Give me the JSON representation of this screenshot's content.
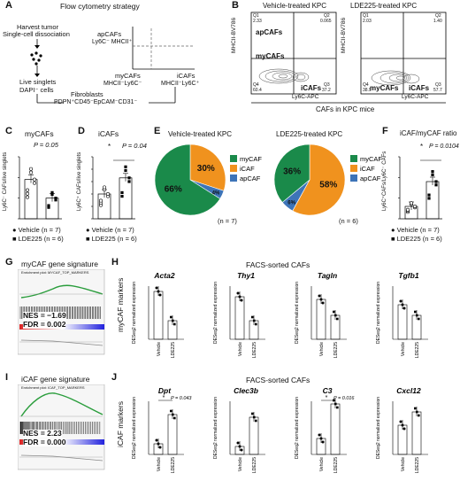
{
  "panels": {
    "A": {
      "letter": "A",
      "title": "Flow cytometry strategy",
      "harvest": "Harvest tumor",
      "dissociation": "Single-cell dissociation",
      "live_singlets": "Live singlets",
      "dapi": "DAPI⁻ cells",
      "fibroblasts": "Fibroblasts",
      "fibro_markers": "PDPN⁺CD45⁻EpCAM⁻CD31⁻",
      "apcafs": "apCAFs",
      "apcafs_markers": "Ly6C⁻ MHCII⁺",
      "mycafs": "myCAFs",
      "mycafs_markers": "MHCII⁻Ly6C⁻",
      "icafs": "iCAFs",
      "icafs_markers": "MHCII⁻Ly6C⁺"
    },
    "B": {
      "letter": "B",
      "left_title": "Vehicle-treated KPC",
      "right_title": "LDE225-treated KPC",
      "ylabel": "MHCII-BV786",
      "xlabel": "Ly6C-APC",
      "bottom": "CAFs in KPC mice",
      "left": {
        "q1": "Q1",
        "q1v": "2.33",
        "q2": "Q2",
        "q2v": "0.065",
        "q3": "Q3",
        "q3v": "37.2",
        "q4": "Q4",
        "q4v": "60.4"
      },
      "right": {
        "q1": "Q1",
        "q1v": "2.03",
        "q2": "Q2",
        "q2v": "1.40",
        "q3": "Q3",
        "q3v": "57.7",
        "q4": "Q4",
        "q4v": "38.9"
      },
      "apcafs": "apCAFs",
      "mycafs": "myCAFs",
      "icafs": "iCAFs"
    },
    "C": {
      "letter": "C",
      "title": "myCAFs",
      "pval": "P = 0.05",
      "ylabel": "Ly6C⁻ CAFs/live singlets"
    },
    "D": {
      "letter": "D",
      "title": "iCAFs",
      "pval": "P = 0.04",
      "star": "*",
      "ylabel": "Ly6C⁺ CAFs/live singlets"
    },
    "E": {
      "letter": "E",
      "left_title": "Vehicle-treated KPC",
      "right_title": "LDE225-treated KPC",
      "left_n": "(n = 7)",
      "right_n": "(n = 6)",
      "legend": [
        "myCAF",
        "iCAF",
        "apCAF"
      ]
    },
    "F": {
      "letter": "F",
      "title": "iCAF/myCAF ratio",
      "pval": "P = 0.0104",
      "star": "*",
      "ylabel": "Ly6C⁺CAFs/Ly6C⁻ CAFs"
    },
    "legend_groups": {
      "vehicle": "Vehicle (n = 7)",
      "lde": "LDE225 (n = 6)"
    },
    "G": {
      "letter": "G",
      "title": "myCAF gene signature",
      "plot_title": "Enrichment plot: MYCAF_TOP_MARKERS",
      "nes": "NES = −1.69",
      "fdr": "FDR = 0.002"
    },
    "H": {
      "letter": "H",
      "title": "FACS-sorted CAFs",
      "side": "myCAF markers",
      "ylabel": "DESeq2 normalized expression",
      "genes": [
        "Acta2",
        "Thy1",
        "Tagln",
        "Tgfb1"
      ],
      "xcats": [
        "Vehicle",
        "LDE225"
      ]
    },
    "I": {
      "letter": "I",
      "title": "iCAF gene signature",
      "plot_title": "Enrichment plot: ICAF_TOP_MARKERS",
      "nes": "NES = 2.23",
      "fdr": "FDR = 0.000"
    },
    "J": {
      "letter": "J",
      "title": "FACS-sorted CAFs",
      "side": "iCAF markers",
      "ylabel": "DESeq2 normalized expression",
      "genes": [
        "Dpt",
        "Clec3b",
        "C3",
        "Cxcl12"
      ],
      "xcats": [
        "Vehicle",
        "LDE225"
      ],
      "pvals": [
        "P = 0.043",
        "",
        "P = 0.016",
        ""
      ],
      "star": "*"
    }
  },
  "chart_data": [
    {
      "type": "pie",
      "title": "Vehicle-treated KPC",
      "categories": [
        "myCAF",
        "iCAF",
        "apCAF"
      ],
      "values": [
        66,
        30,
        4
      ],
      "colors": [
        "#1a8a4a",
        "#f0921e",
        "#3d74b8"
      ]
    },
    {
      "type": "pie",
      "title": "LDE225-treated KPC",
      "categories": [
        "myCAF",
        "iCAF",
        "apCAF"
      ],
      "values": [
        36,
        58,
        6
      ],
      "colors": [
        "#1a8a4a",
        "#f0921e",
        "#3d74b8"
      ]
    },
    {
      "type": "bar",
      "title": "myCAFs",
      "categories": [
        "Vehicle",
        "LDE225"
      ],
      "values": [
        0.38,
        0.2
      ]
    },
    {
      "type": "bar",
      "title": "iCAFs",
      "categories": [
        "Vehicle",
        "LDE225"
      ],
      "values": [
        0.2,
        0.33
      ]
    },
    {
      "type": "bar",
      "title": "iCAF/myCAF ratio",
      "categories": [
        "Vehicle",
        "LDE225"
      ],
      "values": [
        0.6,
        1.8
      ]
    }
  ]
}
